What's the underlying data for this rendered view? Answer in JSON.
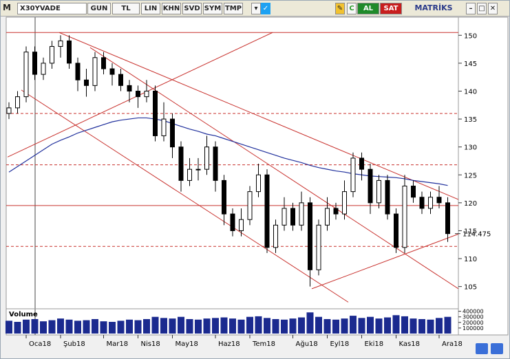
{
  "toolbar": {
    "menu": "M",
    "symbol": "X30YVADE",
    "buttons": [
      "GUN",
      "TL",
      "LIN",
      "KHN",
      "SVD",
      "SYM",
      "TMP"
    ],
    "buy": "AL",
    "sell": "SAT",
    "brand": "MATRİKS"
  },
  "chart_data": {
    "type": "candlestick",
    "categories": [
      null,
      null,
      "Oca18",
      null,
      null,
      null,
      "Şub18",
      null,
      null,
      null,
      null,
      "Mar18",
      null,
      null,
      null,
      "Nis18",
      null,
      null,
      null,
      "May18",
      null,
      null,
      null,
      null,
      "Haz18",
      null,
      null,
      null,
      "Tem18",
      null,
      null,
      null,
      null,
      "Ağu18",
      null,
      null,
      null,
      "Eyl18",
      null,
      null,
      null,
      "Eki18",
      null,
      null,
      null,
      "Kas18",
      null,
      null,
      null,
      null,
      "Ara18",
      null
    ],
    "open": [
      136,
      137,
      139,
      147,
      143,
      145,
      148,
      149,
      145,
      142,
      141,
      146,
      144,
      143,
      141,
      140,
      139,
      140,
      132,
      135,
      130,
      124,
      126,
      126,
      130,
      124,
      118,
      115,
      117,
      122,
      125,
      112,
      116,
      119,
      116,
      120,
      108,
      116,
      119,
      118,
      122,
      128,
      126,
      120,
      124,
      118,
      112,
      123,
      121,
      119,
      121,
      120
    ],
    "high": [
      138,
      140,
      148,
      148,
      146,
      149,
      150,
      150,
      146,
      144,
      147,
      147,
      145,
      144,
      142,
      141,
      142,
      141,
      138,
      136,
      131,
      128,
      128,
      132,
      131,
      125,
      119,
      119,
      123,
      127,
      126,
      117,
      121,
      120,
      122,
      121,
      117,
      121,
      120,
      124,
      129,
      129,
      127,
      125,
      125,
      119,
      125,
      124,
      122,
      122,
      123,
      121
    ],
    "low": [
      135,
      136,
      138,
      142,
      142,
      144,
      146,
      144,
      140,
      139,
      140,
      143,
      141,
      140,
      138,
      137,
      138,
      131,
      131,
      128,
      122,
      123,
      124,
      125,
      122,
      116,
      114,
      114,
      116,
      121,
      111,
      111,
      115,
      115,
      115,
      105,
      107,
      115,
      117,
      117,
      121,
      124,
      118,
      119,
      117,
      111,
      111,
      120,
      118,
      118,
      119,
      113
    ],
    "close": [
      137,
      139,
      147,
      143,
      145,
      148,
      149,
      145,
      142,
      141,
      146,
      144,
      143,
      141,
      140,
      139,
      140,
      132,
      135,
      130,
      124,
      126,
      126,
      130,
      124,
      118,
      115,
      117,
      122,
      125,
      112,
      116,
      119,
      116,
      120,
      108,
      116,
      119,
      118,
      122,
      128,
      126,
      120,
      124,
      118,
      112,
      123,
      121,
      119,
      121,
      120,
      114.475
    ],
    "moving_average": {
      "color": "#1f2f9c",
      "values": [
        125.5,
        126.5,
        127.5,
        128.5,
        129.5,
        130.5,
        131.2,
        131.8,
        132.5,
        133,
        133.5,
        134,
        134.5,
        134.8,
        135,
        135.2,
        135.2,
        135,
        134.7,
        134.2,
        133.7,
        133.2,
        132.8,
        132.3,
        132,
        131.5,
        131,
        130.5,
        130,
        129.5,
        129,
        128.5,
        128,
        127.6,
        127.2,
        126.7,
        126.3,
        126,
        125.7,
        125.5,
        125.2,
        125,
        124.8,
        124.7,
        124.6,
        124.5,
        124.3,
        124,
        123.8,
        123.6,
        123.4,
        123.1
      ]
    },
    "ylim": [
      102,
      152.5
    ],
    "yticks": [
      105,
      110,
      115,
      120,
      125,
      130,
      135,
      140,
      145,
      150
    ],
    "line_color": "#c8302c",
    "hlines": [
      {
        "value": 150.5,
        "style": "solid"
      },
      {
        "value": 136,
        "style": "dashed"
      },
      {
        "value": 126.8,
        "style": "dashed"
      },
      {
        "value": 119.5,
        "style": "solid"
      },
      {
        "value": 112.2,
        "style": "dashed"
      }
    ],
    "trend_lines": [
      {
        "x": [
          -0.16,
          30.64
        ],
        "y": [
          128.2,
          150.5
        ]
      },
      {
        "x": [
          5.84,
          52.24
        ],
        "y": [
          150.5,
          120.6
        ]
      },
      {
        "x": [
          9.44,
          52.24
        ],
        "y": [
          147.8,
          104.6
        ]
      },
      {
        "x": [
          1.44,
          39.44
        ],
        "y": [
          140.2,
          102.2
        ]
      },
      {
        "x": [
          35.2,
          52.24
        ],
        "y": [
          104.6,
          114.4
        ]
      }
    ],
    "volume": {
      "label": "Volume",
      "color": "#1b2a8f",
      "ylim": [
        0,
        420000
      ],
      "yticks": [
        100000,
        200000,
        300000,
        400000
      ],
      "values": [
        230000,
        210000,
        250000,
        260000,
        220000,
        240000,
        270000,
        250000,
        230000,
        240000,
        260000,
        220000,
        210000,
        230000,
        250000,
        240000,
        260000,
        300000,
        280000,
        270000,
        300000,
        260000,
        250000,
        270000,
        280000,
        290000,
        270000,
        250000,
        300000,
        310000,
        280000,
        260000,
        250000,
        270000,
        290000,
        380000,
        300000,
        260000,
        250000,
        270000,
        320000,
        280000,
        300000,
        270000,
        290000,
        330000,
        310000,
        270000,
        260000,
        250000,
        280000,
        300000
      ]
    }
  }
}
